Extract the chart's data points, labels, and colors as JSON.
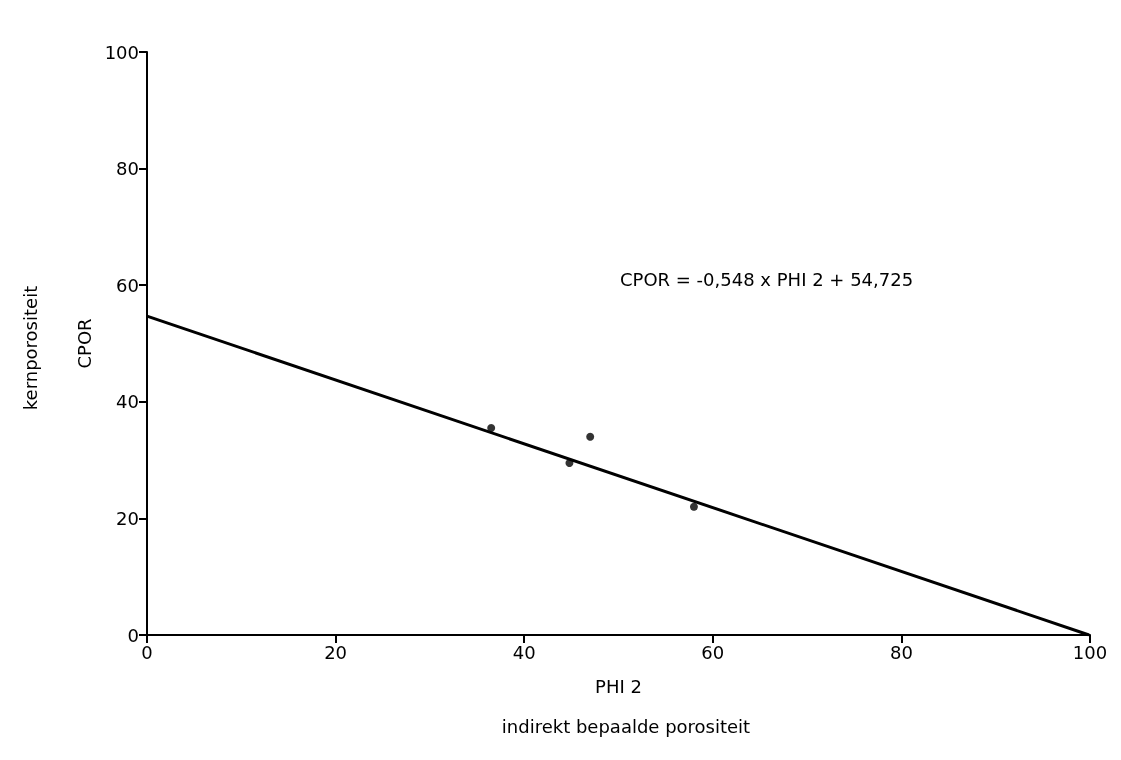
{
  "chart_data": {
    "type": "scatter",
    "xlabel": "PHI 2",
    "ylabel": "CPOR",
    "annotations": [
      "CPOR = -0,548 x PHI 2 + 54,725",
      "indirekt bepaalde porositeit",
      "kernporositeit"
    ],
    "series": [
      {
        "color": "#000000",
        "marker": "circle",
        "x": [
          36.5,
          44.8,
          47,
          58
        ],
        "values": [
          35.5,
          29.5,
          34,
          22
        ]
      },
      {
        "type": "line",
        "color": "#000000",
        "marker": "none",
        "line_style": "solid",
        "x": [
          0,
          99.9
        ],
        "values": [
          54.7,
          0
        ]
      }
    ],
    "xlim": [
      0,
      100
    ],
    "xticks": [
      0,
      20,
      40,
      60,
      80,
      100
    ],
    "ylim": [
      0,
      100
    ],
    "yticks": [
      0,
      20,
      40,
      60,
      80,
      100
    ],
    "grid": false
  }
}
